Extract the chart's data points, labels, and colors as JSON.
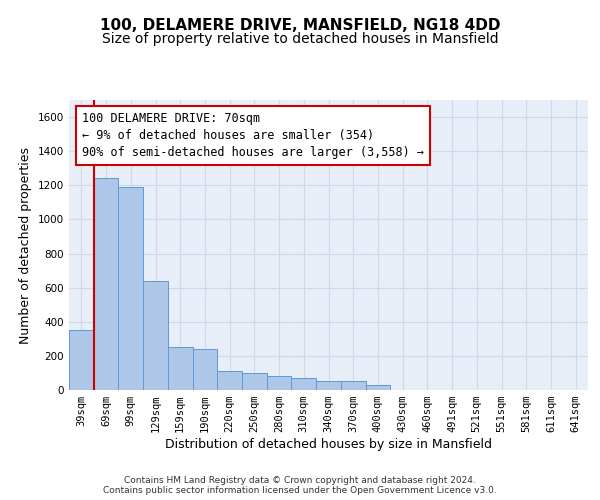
{
  "title_line1": "100, DELAMERE DRIVE, MANSFIELD, NG18 4DD",
  "title_line2": "Size of property relative to detached houses in Mansfield",
  "xlabel": "Distribution of detached houses by size in Mansfield",
  "ylabel": "Number of detached properties",
  "categories": [
    "39sqm",
    "69sqm",
    "99sqm",
    "129sqm",
    "159sqm",
    "190sqm",
    "220sqm",
    "250sqm",
    "280sqm",
    "310sqm",
    "340sqm",
    "370sqm",
    "400sqm",
    "430sqm",
    "460sqm",
    "491sqm",
    "521sqm",
    "551sqm",
    "581sqm",
    "611sqm",
    "641sqm"
  ],
  "values": [
    350,
    1240,
    1190,
    640,
    250,
    240,
    110,
    100,
    85,
    70,
    55,
    50,
    30,
    0,
    0,
    0,
    0,
    0,
    0,
    0,
    0
  ],
  "bar_color": "#aec6e8",
  "bar_edge_color": "#5b9bd5",
  "annotation_text": "100 DELAMERE DRIVE: 70sqm\n← 9% of detached houses are smaller (354)\n90% of semi-detached houses are larger (3,558) →",
  "annotation_box_color": "#ffffff",
  "annotation_box_edge_color": "#cc0000",
  "red_line_color": "#cc0000",
  "ylim": [
    0,
    1700
  ],
  "yticks": [
    0,
    200,
    400,
    600,
    800,
    1000,
    1200,
    1400,
    1600
  ],
  "grid_color": "#d0d8e8",
  "bg_color": "#e8eef8",
  "footer_text": "Contains HM Land Registry data © Crown copyright and database right 2024.\nContains public sector information licensed under the Open Government Licence v3.0.",
  "title_fontsize": 11,
  "subtitle_fontsize": 10,
  "tick_fontsize": 7.5,
  "label_fontsize": 9,
  "annotation_fontsize": 8.5
}
